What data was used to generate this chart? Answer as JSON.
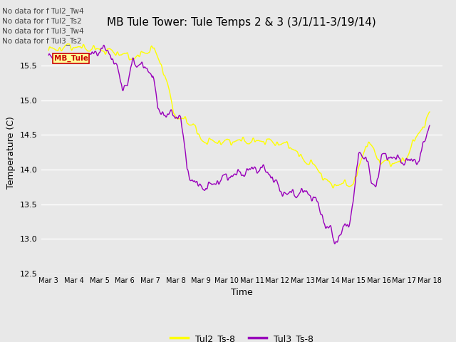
{
  "title": "MB Tule Tower: Tule Temps 2 & 3 (3/1/11-3/19/14)",
  "xlabel": "Time",
  "ylabel": "Temperature (C)",
  "ylim": [
    12.5,
    16.0
  ],
  "yticks": [
    12.5,
    13.0,
    13.5,
    14.0,
    14.5,
    15.0,
    15.5
  ],
  "xtick_labels": [
    "Mar 3",
    "Mar 4",
    "Mar 5",
    "Mar 6",
    "Mar 7",
    "Mar 8",
    "Mar 9",
    "Mar 10",
    "Mar 11",
    "Mar 12",
    "Mar 13",
    "Mar 14",
    "Mar 15",
    "Mar 16",
    "Mar 17",
    "Mar 18"
  ],
  "color_tul2": "#ffff00",
  "color_tul3": "#9900bb",
  "legend_labels": [
    "Tul2_Ts-8",
    "Tul3_Ts-8"
  ],
  "annotation_lines": [
    "No data for f Tul2_Tw4",
    "No data for f Tul2_Ts2",
    "No data for f Tul3_Tw4",
    "No data for f Tul3_Ts2"
  ],
  "tooltip_text": "MB_Tule",
  "fig_bg_color": "#e8e8e8",
  "plot_bg_color": "#e8e8e8",
  "title_fontsize": 11,
  "axis_label_fontsize": 9,
  "tick_fontsize": 8,
  "tul2_cp_x": [
    0,
    0.4,
    0.8,
    1.2,
    1.6,
    2.0,
    2.5,
    3.0,
    3.4,
    3.8,
    4.0,
    4.15,
    4.3,
    4.5,
    4.7,
    5.0,
    5.3,
    5.7,
    6.0,
    6.5,
    7.0,
    7.5,
    8.0,
    8.5,
    9.0,
    9.5,
    10.0,
    10.5,
    11.0,
    11.3,
    11.5,
    11.7,
    12.0,
    12.2,
    12.5,
    12.8,
    13.0,
    13.3,
    13.7,
    14.0,
    14.3,
    14.7,
    15.0
  ],
  "tul2_cp_y": [
    15.72,
    15.74,
    15.78,
    15.76,
    15.74,
    15.73,
    15.7,
    15.65,
    15.6,
    15.7,
    15.72,
    15.74,
    15.62,
    15.45,
    15.18,
    14.75,
    14.72,
    14.65,
    14.42,
    14.4,
    14.4,
    14.42,
    14.4,
    14.42,
    14.38,
    14.35,
    14.15,
    14.05,
    13.8,
    13.78,
    13.78,
    13.8,
    13.78,
    14.0,
    14.38,
    14.3,
    14.12,
    14.1,
    14.1,
    14.12,
    14.35,
    14.6,
    14.8
  ],
  "tul3_cp_x": [
    0,
    0.5,
    1.0,
    1.5,
    2.0,
    2.3,
    2.6,
    2.9,
    3.1,
    3.3,
    3.6,
    3.9,
    4.1,
    4.3,
    4.6,
    5.0,
    5.2,
    5.45,
    5.7,
    6.0,
    6.3,
    6.6,
    7.0,
    7.4,
    7.8,
    8.1,
    8.5,
    8.8,
    9.1,
    9.4,
    9.8,
    10.0,
    10.3,
    10.6,
    10.9,
    11.1,
    11.25,
    11.4,
    11.6,
    11.8,
    12.0,
    12.2,
    12.5,
    12.7,
    12.9,
    13.1,
    13.4,
    13.7,
    14.0,
    14.3,
    14.6,
    15.0
  ],
  "tul3_cp_y": [
    15.6,
    15.6,
    15.6,
    15.62,
    15.72,
    15.73,
    15.55,
    15.2,
    15.22,
    15.55,
    15.52,
    15.42,
    15.4,
    14.85,
    14.8,
    14.78,
    14.76,
    14.0,
    13.82,
    13.75,
    13.75,
    13.82,
    13.9,
    13.93,
    13.97,
    14.02,
    14.0,
    13.9,
    13.7,
    13.65,
    13.65,
    13.68,
    13.65,
    13.5,
    13.2,
    13.12,
    12.97,
    13.0,
    13.15,
    13.2,
    13.55,
    14.22,
    14.2,
    13.8,
    13.78,
    14.18,
    14.2,
    14.15,
    14.12,
    14.12,
    14.15,
    14.65
  ]
}
